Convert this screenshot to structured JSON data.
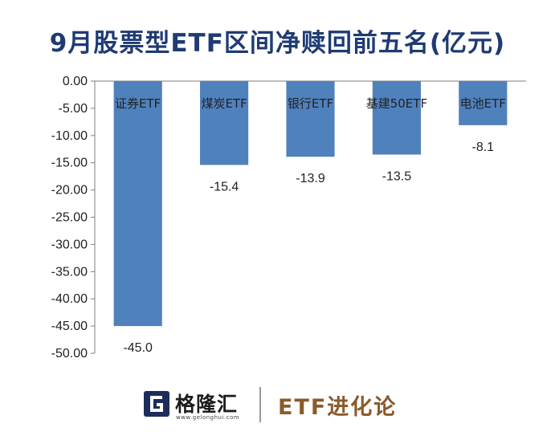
{
  "chart_data": {
    "type": "bar",
    "title": "9月股票型ETF区间净赎回前五名(亿元)",
    "categories": [
      "证券ETF",
      "煤炭ETF",
      "银行ETF",
      "基建50ETF",
      "电池ETF"
    ],
    "values": [
      -45.0,
      -15.4,
      -13.9,
      -13.5,
      -8.1
    ],
    "data_labels": [
      "-45.0",
      "-15.4",
      "-13.9",
      "-13.5",
      "-8.1"
    ],
    "ylim": [
      -50,
      0
    ],
    "yticks": [
      "0.00",
      "-5.00",
      "-10.00",
      "-15.00",
      "-20.00",
      "-25.00",
      "-30.00",
      "-35.00",
      "-40.00",
      "-45.00",
      "-50.00"
    ],
    "bar_color": "#4f81bd",
    "grid": false,
    "legend": "none",
    "xlabel": "",
    "ylabel": ""
  },
  "footer": {
    "brand": "格隆汇",
    "brand_url": "www.gelonghui.com",
    "slogan": "ETF进化论",
    "logo_icon": "g-logo-icon",
    "brand_color": "#1c2d5a",
    "slogan_color": "#8a5a2b"
  }
}
